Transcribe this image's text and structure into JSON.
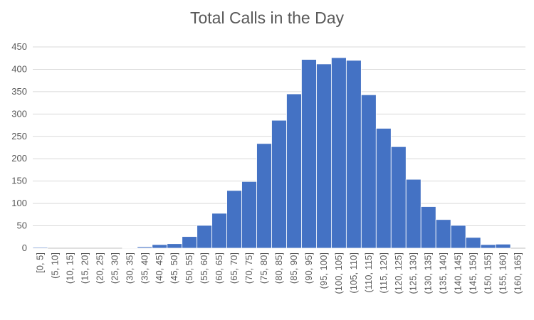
{
  "chart_data": {
    "type": "bar",
    "title": "Total Calls in the Day",
    "xlabel": "",
    "ylabel": "",
    "ylim": [
      0,
      450
    ],
    "yticks": [
      0,
      50,
      100,
      150,
      200,
      250,
      300,
      350,
      400,
      450
    ],
    "grid": true,
    "legend": "none",
    "bar_color": "#4472C4",
    "categories": [
      "[0, 5]",
      "(5, 10]",
      "(10, 15]",
      "(15, 20]",
      "(20, 25]",
      "(25, 30]",
      "(30, 35]",
      "(35, 40]",
      "(40, 45]",
      "(45, 50]",
      "(50, 55]",
      "(55, 60]",
      "(60, 65]",
      "(65, 70]",
      "(70, 75]",
      "(75, 80]",
      "(80, 85]",
      "(85, 90]",
      "(90, 95]",
      "(95, 100]",
      "(100, 105]",
      "(105, 110]",
      "(110, 115]",
      "(115, 120]",
      "(120, 125]",
      "(125, 130]",
      "(130, 135]",
      "(135, 140]",
      "(140, 145]",
      "(145, 150]",
      "(150, 155]",
      "(155, 160]",
      "(160, 165]"
    ],
    "values": [
      2,
      0,
      0,
      0,
      0,
      0,
      1,
      3,
      8,
      10,
      26,
      51,
      78,
      129,
      149,
      234,
      286,
      345,
      422,
      412,
      426,
      420,
      343,
      268,
      227,
      154,
      93,
      64,
      51,
      24,
      8,
      9,
      0
    ]
  }
}
